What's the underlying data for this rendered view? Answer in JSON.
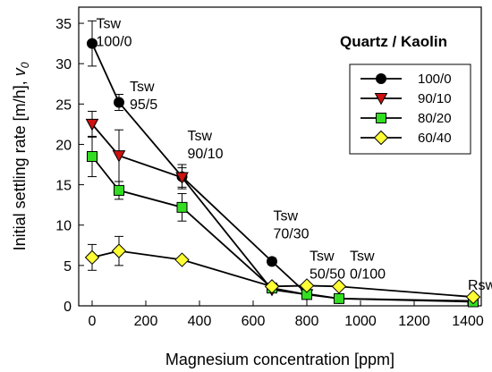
{
  "chart_data": {
    "type": "line",
    "xlabel": "Magnesium concentration [ppm]",
    "ylabel_main": "Initial settling rate [m/h], ",
    "ylabel_sym": "v",
    "ylabel_sub": "0",
    "xlim": [
      -50,
      1450
    ],
    "ylim": [
      0,
      37
    ],
    "xticks": [
      0,
      200,
      400,
      600,
      800,
      1000,
      1200,
      1400
    ],
    "yticks": [
      0,
      5,
      10,
      15,
      20,
      25,
      30,
      35
    ],
    "legend": {
      "title": "Quartz / Kaolin",
      "position": "top-right"
    },
    "series": [
      {
        "name": "100/0",
        "marker": "circle",
        "color": "#000000",
        "points": [
          {
            "x": 0,
            "y": 32.5,
            "err": 2.8
          },
          {
            "x": 100,
            "y": 25.2,
            "err": 1.0
          },
          {
            "x": 335,
            "y": 16.0,
            "err": 1.5
          },
          {
            "x": 670,
            "y": 5.5,
            "err": 0.4
          },
          {
            "x": 800,
            "y": 1.5,
            "err": 0
          },
          {
            "x": 920,
            "y": 0.9,
            "err": 0
          },
          {
            "x": 1420,
            "y": 0.6,
            "err": 0
          }
        ]
      },
      {
        "name": "90/10",
        "marker": "triangle-down",
        "color": "#cc1111",
        "points": [
          {
            "x": 0,
            "y": 22.5,
            "err": 1.6
          },
          {
            "x": 100,
            "y": 18.6,
            "err": 3.2
          },
          {
            "x": 335,
            "y": 15.9,
            "err": 1.2
          },
          {
            "x": 670,
            "y": 2.0,
            "err": 0
          },
          {
            "x": 800,
            "y": 1.4,
            "err": 0
          }
        ]
      },
      {
        "name": "80/20",
        "marker": "square",
        "color": "#33dd22",
        "points": [
          {
            "x": 0,
            "y": 18.5,
            "err": 2.5
          },
          {
            "x": 100,
            "y": 14.3,
            "err": 1.1
          },
          {
            "x": 335,
            "y": 12.2,
            "err": 1.7
          },
          {
            "x": 670,
            "y": 2.2,
            "err": 0
          },
          {
            "x": 800,
            "y": 1.4,
            "err": 0
          },
          {
            "x": 920,
            "y": 0.9,
            "err": 0
          },
          {
            "x": 1420,
            "y": 0.5,
            "err": 0
          }
        ]
      },
      {
        "name": "60/40",
        "marker": "diamond",
        "color": "#ffff33",
        "points": [
          {
            "x": 0,
            "y": 6.0,
            "err": 1.6
          },
          {
            "x": 100,
            "y": 6.8,
            "err": 1.8
          },
          {
            "x": 335,
            "y": 5.7,
            "err": 0
          },
          {
            "x": 670,
            "y": 2.4,
            "err": 0
          },
          {
            "x": 800,
            "y": 2.5,
            "err": 0
          },
          {
            "x": 920,
            "y": 2.4,
            "err": 0
          },
          {
            "x": 1420,
            "y": 1.1,
            "err": 0
          }
        ]
      }
    ],
    "annotations": [
      {
        "lines": [
          "Tsw",
          "100/0"
        ],
        "x": 15,
        "y": 34.4
      },
      {
        "lines": [
          "Tsw",
          "95/5"
        ],
        "x": 140,
        "y": 26.6
      },
      {
        "lines": [
          "Tsw",
          "90/10"
        ],
        "x": 355,
        "y": 20.5
      },
      {
        "lines": [
          "Tsw",
          "70/30"
        ],
        "x": 675,
        "y": 10.6
      },
      {
        "lines": [
          "Tsw",
          "50/50"
        ],
        "x": 810,
        "y": 5.6
      },
      {
        "lines": [
          "Tsw",
          "0/100"
        ],
        "x": 960,
        "y": 5.6
      },
      {
        "lines": [
          "Rsw"
        ],
        "x": 1400,
        "y": 2.0
      }
    ]
  }
}
